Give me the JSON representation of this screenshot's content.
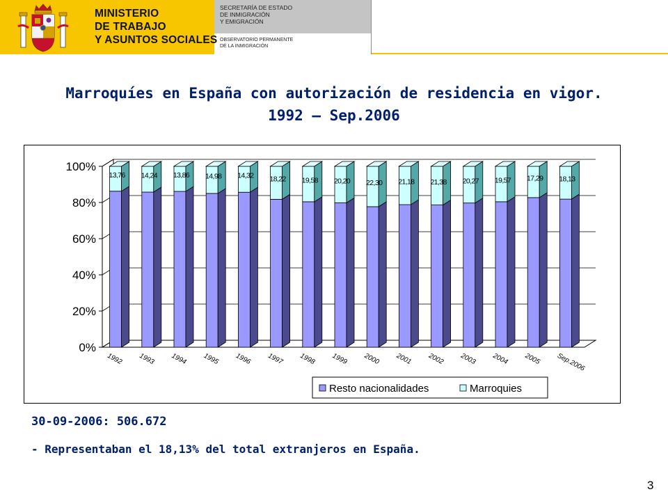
{
  "header": {
    "ministry_lines": [
      "MINISTERIO",
      "DE TRABAJO",
      "Y ASUNTOS SOCIALES"
    ],
    "secretaria_lines": [
      "SECRETARÍA DE ESTADO",
      "DE INMIGRACIÓN",
      "Y EMIGRACIÓN"
    ],
    "observatorio_lines": [
      "OBSERVATORIO PERMANENTE",
      "DE LA INMIGRACIÓN"
    ],
    "colors": {
      "yellow": "#f7c600",
      "gray": "#c4c4c4"
    },
    "crest_icon": "coat-of-arms-icon"
  },
  "title_lines": [
    "Marroquíes en España con autorización de residencia en vigor.",
    "1992 – Sep.2006"
  ],
  "chart_data": {
    "type": "bar",
    "stacked": "percent",
    "categories": [
      "1992",
      "1993",
      "1994",
      "1995",
      "1996",
      "1997",
      "1998",
      "1999",
      "2000",
      "2001",
      "2002",
      "2003",
      "2004",
      "2005",
      "Sep.2006"
    ],
    "series": [
      {
        "name": "Resto nacionalidades",
        "color": "#9999ff",
        "values": [
          86.24,
          85.76,
          86.14,
          85.02,
          85.68,
          81.78,
          80.42,
          79.8,
          77.7,
          78.82,
          78.62,
          79.73,
          80.43,
          82.71,
          81.87
        ]
      },
      {
        "name": "Marroquies",
        "color": "#ccffff",
        "values": [
          13.76,
          14.24,
          13.86,
          14.98,
          14.32,
          18.22,
          19.58,
          20.2,
          22.3,
          21.18,
          21.38,
          20.27,
          19.57,
          17.29,
          18.13
        ],
        "labels": [
          "13,76",
          "14,24",
          "13,86",
          "14,98",
          "14,32",
          "18,22",
          "19,58",
          "20,20",
          "22,30",
          "21,18",
          "21,38",
          "20,27",
          "19,57",
          "17,29",
          "18,13"
        ]
      }
    ],
    "y_tick_labels": [
      "0%",
      "20%",
      "40%",
      "60%",
      "80%",
      "100%"
    ],
    "ylim": [
      0,
      100
    ],
    "grid": true,
    "legend": "bottom",
    "style": "3d-column"
  },
  "footer": {
    "stat": "30-09-2006: 506.672",
    "note": "- Representaban el 18,13% del total extranjeros en España."
  },
  "page_number": "3"
}
